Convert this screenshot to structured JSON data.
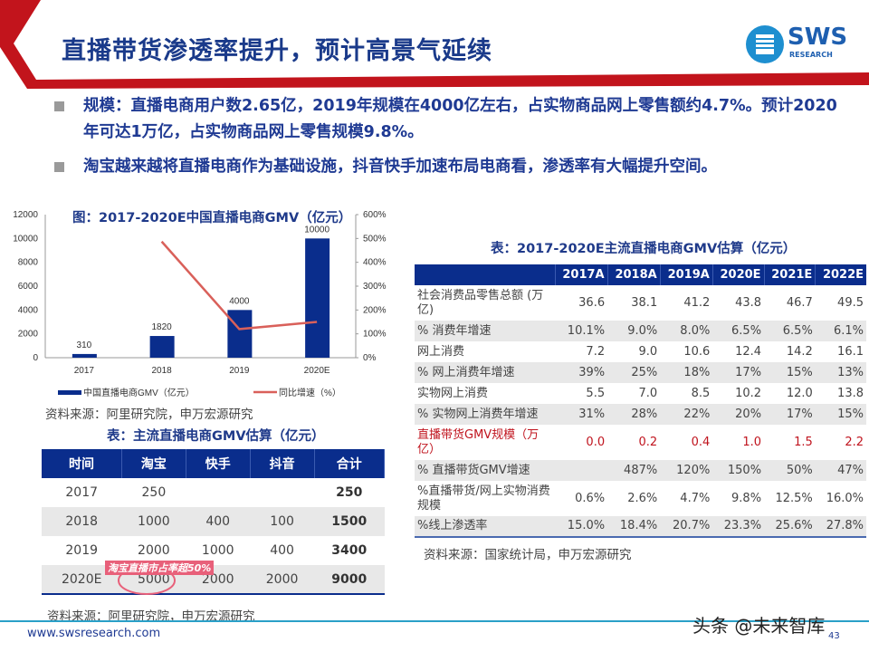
{
  "header": {
    "title": "直播带货渗透率提升，预计高景气延续",
    "logo_text": "SWS",
    "logo_sub": "RESEARCH"
  },
  "bullets": [
    "规模：直播电商用户数2.65亿，2019年规模在4000亿左右，占实物商品网上零售额约4.7%。预计2020年可达1万亿，占实物商品网上零售规模9.8%。",
    "淘宝越来越将直播电商作为基础设施，抖音快手加速布局电商看，渗透率有大幅提升空间。"
  ],
  "chart_data": {
    "type": "bar",
    "title": "图：2017-2020E中国直播电商GMV（亿元）",
    "categories": [
      "2017",
      "2018",
      "2019",
      "2020E"
    ],
    "series": [
      {
        "name": "中国直播电商GMV（亿元）",
        "type": "bar",
        "axis": "left",
        "values": [
          310,
          1820,
          4000,
          10000
        ],
        "color": "#0a2d8c"
      },
      {
        "name": "同比增速（%）",
        "type": "line",
        "axis": "right",
        "values": [
          null,
          487,
          120,
          150
        ],
        "color": "#d9605a"
      }
    ],
    "y_left": {
      "range": [
        0,
        12000
      ],
      "ticks": [
        "0",
        "2000",
        "4000",
        "6000",
        "8000",
        "10000",
        "12000"
      ]
    },
    "y_right": {
      "range": [
        0,
        600
      ],
      "ticks": [
        "0%",
        "100%",
        "200%",
        "300%",
        "400%",
        "500%",
        "600%"
      ]
    },
    "data_labels": [
      "310",
      "1820",
      "4000",
      "10000"
    ],
    "legend": "bottom",
    "source": "资料来源：阿里研究院，申万宏源研究"
  },
  "left_table": {
    "title": "表：主流直播电商GMV估算（亿元）",
    "headers": [
      "时间",
      "淘宝",
      "快手",
      "抖音",
      "合计"
    ],
    "rows": [
      [
        "2017",
        "250",
        "",
        "",
        "250"
      ],
      [
        "2018",
        "1000",
        "400",
        "100",
        "1500"
      ],
      [
        "2019",
        "2000",
        "1000",
        "400",
        "3400"
      ],
      [
        "2020E",
        "5000",
        "2000",
        "2000",
        "9000"
      ]
    ],
    "annotation": "淘宝直播市占率超50%",
    "source": "资料来源：阿里研究院，申万宏源研究"
  },
  "right_table": {
    "title": "表：2017-2020E主流直播电商GMV估算（亿元）",
    "headers": [
      "",
      "2017A",
      "2018A",
      "2019A",
      "2020E",
      "2021E",
      "2022E"
    ],
    "rows": [
      [
        "社会消费品零售总额 (万亿)",
        "36.6",
        "38.1",
        "41.2",
        "43.8",
        "46.7",
        "49.5"
      ],
      [
        "% 消费年增速",
        "10.1%",
        "9.0%",
        "8.0%",
        "6.5%",
        "6.5%",
        "6.1%"
      ],
      [
        "网上消费",
        "7.2",
        "9.0",
        "10.6",
        "12.4",
        "14.2",
        "16.1"
      ],
      [
        "% 网上消费年增速",
        "39%",
        "25%",
        "18%",
        "17%",
        "15%",
        "13%"
      ],
      [
        "实物网上消费",
        "5.5",
        "7.0",
        "8.5",
        "10.2",
        "12.0",
        "13.8"
      ],
      [
        "% 实物网上消费年增速",
        "31%",
        "28%",
        "22%",
        "20%",
        "17%",
        "15%"
      ],
      [
        "直播带货GMV规模（万亿）",
        "0.0",
        "0.2",
        "0.4",
        "1.0",
        "1.5",
        "2.2"
      ],
      [
        "% 直播带货GMV增速",
        "",
        "487%",
        "120%",
        "150%",
        "50%",
        "47%"
      ],
      [
        "%直播带货/网上实物消费规模",
        "0.6%",
        "2.6%",
        "4.7%",
        "9.8%",
        "12.5%",
        "16.0%"
      ],
      [
        "%线上渗透率",
        "15.0%",
        "18.4%",
        "20.7%",
        "23.3%",
        "25.6%",
        "27.8%"
      ]
    ],
    "source": "资料来源：国家统计局，申万宏源研究"
  },
  "footer": {
    "website": "www.swsresearch.com",
    "page": "43",
    "watermark": "头条 @未来智库"
  }
}
